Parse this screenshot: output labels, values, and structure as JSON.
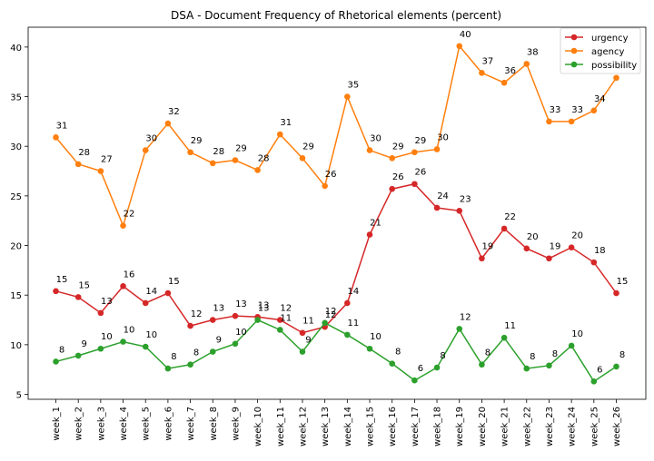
{
  "chart_data": {
    "type": "line",
    "title": "DSA - Document Frequency of Rhetorical elements (percent)",
    "xlabel": "",
    "ylabel": "",
    "categories": [
      "week_1",
      "week_2",
      "week_3",
      "week_4",
      "week_5",
      "week_6",
      "week_7",
      "week_8",
      "week_9",
      "week_10",
      "week_11",
      "week_12",
      "week_13",
      "week_14",
      "week_15",
      "week_16",
      "week_17",
      "week_18",
      "week_19",
      "week_20",
      "week_21",
      "week_22",
      "week_23",
      "week_24",
      "week_25",
      "week_26"
    ],
    "ylim": [
      4.5,
      42
    ],
    "yticks": [
      5,
      10,
      15,
      20,
      25,
      30,
      35,
      40
    ],
    "grid": false,
    "legend_position": "top-right",
    "series": [
      {
        "name": "urgency",
        "color": "#d62728",
        "values": [
          15.4,
          14.8,
          13.2,
          15.9,
          14.2,
          15.2,
          11.9,
          12.5,
          12.9,
          12.8,
          12.5,
          11.2,
          11.8,
          14.2,
          21.1,
          25.7,
          26.2,
          23.8,
          23.5,
          18.7,
          21.7,
          19.7,
          18.7,
          19.8,
          18.3,
          15.2
        ],
        "labels": [
          "15",
          "15",
          "13",
          "16",
          "14",
          "15",
          "12",
          "13",
          "13",
          "13",
          "12",
          "11",
          "12",
          "14",
          "21",
          "26",
          "26",
          "24",
          "23",
          "19",
          "22",
          "20",
          "19",
          "20",
          "18",
          "15"
        ]
      },
      {
        "name": "agency",
        "color": "#ff7f0e",
        "values": [
          30.9,
          28.2,
          27.5,
          22.0,
          29.6,
          32.3,
          29.4,
          28.3,
          28.6,
          27.6,
          31.2,
          28.8,
          26.0,
          35.0,
          29.6,
          28.8,
          29.4,
          29.7,
          40.1,
          37.4,
          36.4,
          38.3,
          32.5,
          32.5,
          33.6,
          36.9
        ],
        "labels": [
          "31",
          "28",
          "27",
          "22",
          "30",
          "32",
          "29",
          "28",
          "29",
          "28",
          "31",
          "29",
          "26",
          "35",
          "30",
          "29",
          "29",
          "30",
          "40",
          "37",
          "36",
          "38",
          "33",
          "33",
          "34",
          "37"
        ]
      },
      {
        "name": "possibility",
        "color": "#2ca02c",
        "values": [
          8.3,
          8.9,
          9.6,
          10.3,
          9.8,
          7.6,
          8.0,
          9.3,
          10.1,
          12.5,
          11.5,
          9.3,
          12.2,
          11.0,
          9.6,
          8.1,
          6.4,
          7.7,
          11.6,
          8.0,
          10.7,
          7.6,
          7.9,
          9.9,
          6.3,
          7.8
        ],
        "labels": [
          "8",
          "9",
          "10",
          "10",
          "10",
          "8",
          "8",
          "9",
          "10",
          "13",
          "11",
          "9",
          "12",
          "11",
          "10",
          "8",
          "6",
          "8",
          "12",
          "8",
          "11",
          "8",
          "8",
          "10",
          "6",
          "8"
        ]
      }
    ]
  }
}
